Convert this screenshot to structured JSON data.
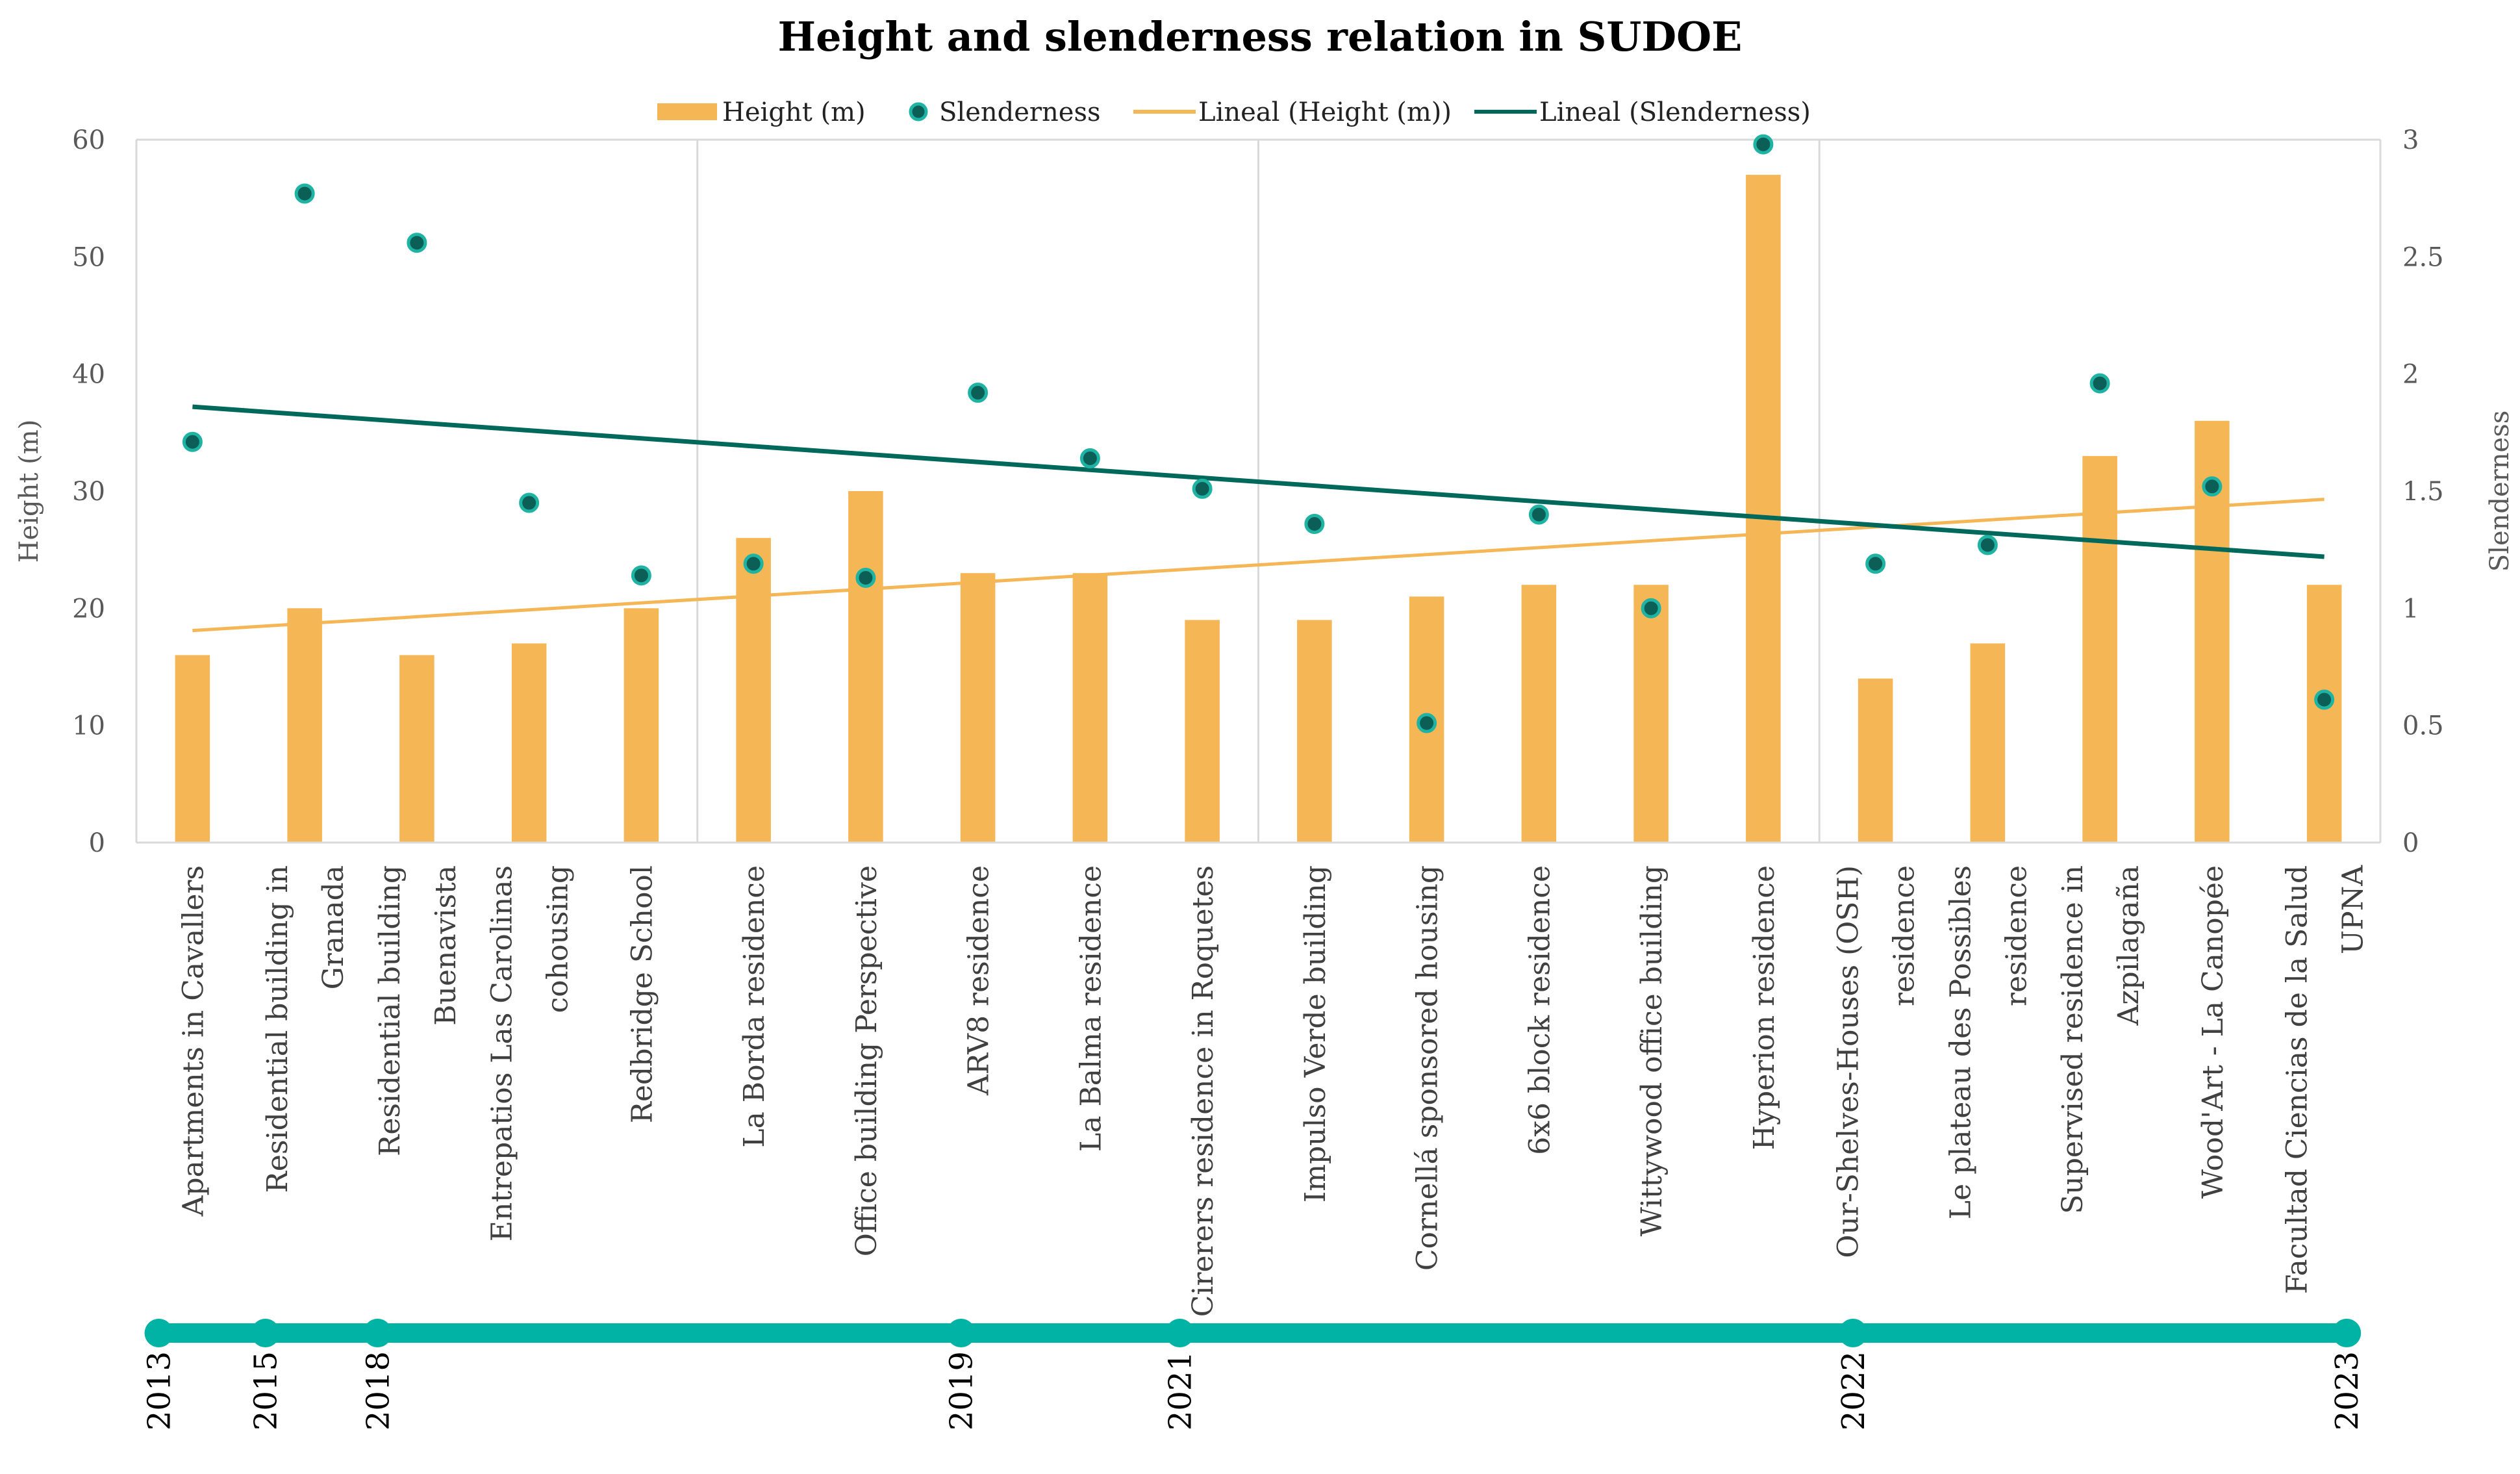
{
  "chart_data": {
    "type": "bar",
    "title": "Height and slenderness relation in SUDOE",
    "legend": [
      {
        "label": "Height (m)",
        "kind": "bar"
      },
      {
        "label": "Slenderness",
        "kind": "marker"
      },
      {
        "label": "Lineal (Height (m))",
        "kind": "line"
      },
      {
        "label": "Lineal (Slenderness)",
        "kind": "line"
      }
    ],
    "categories": [
      [
        "Apartments in Cavallers"
      ],
      [
        "Residential building in",
        "Granada"
      ],
      [
        "Residential building",
        "Buenavista"
      ],
      [
        "Entrepatios Las Carolinas",
        "cohousing"
      ],
      [
        "Redbridge School"
      ],
      [
        "La Borda residence"
      ],
      [
        "Office building Perspective"
      ],
      [
        "ARV8 residence"
      ],
      [
        "La Balma residence"
      ],
      [
        "Cirerers residence in Roquetes"
      ],
      [
        "Impulso Verde building"
      ],
      [
        "Cornellá sponsored housing"
      ],
      [
        "6x6 block residence"
      ],
      [
        "Wittywood office building"
      ],
      [
        "Hyperion residence"
      ],
      [
        "Our-Shelves-Houses (OSH)",
        "residence"
      ],
      [
        "Le plateau des Possibles",
        "residence"
      ],
      [
        "Supervised residence in",
        "Azpilagaña"
      ],
      [
        "Wood'Art - La Canopée"
      ],
      [
        "Facultad Ciencias de la Salud",
        "UPNA"
      ]
    ],
    "series": [
      {
        "name": "Height (m)",
        "type": "bar",
        "axis": "left",
        "color": "#F5B655",
        "values": [
          16,
          20,
          16,
          17,
          20,
          26,
          30,
          23,
          23,
          19,
          19,
          21,
          22,
          22,
          57,
          14,
          17,
          33,
          36,
          22
        ]
      },
      {
        "name": "Slenderness",
        "type": "scatter",
        "axis": "right",
        "color": "#0F7A6E",
        "values": [
          1.71,
          2.77,
          2.56,
          1.45,
          1.14,
          1.19,
          1.13,
          1.92,
          1.64,
          1.51,
          1.36,
          0.51,
          1.4,
          1.0,
          2.98,
          1.19,
          1.27,
          1.96,
          1.52,
          0.61
        ]
      },
      {
        "name": "Lineal (Height (m))",
        "type": "trendline",
        "axis": "left",
        "color": "#F5B655",
        "start": 18.1,
        "end": 29.3
      },
      {
        "name": "Lineal (Slenderness)",
        "type": "trendline",
        "axis": "right",
        "color": "#00695C",
        "start": 1.86,
        "end": 1.22
      }
    ],
    "y_left": {
      "label": "Height (m)",
      "min": 0,
      "max": 60,
      "ticks": [
        "0",
        "10",
        "20",
        "30",
        "40",
        "50",
        "60"
      ]
    },
    "y_right": {
      "label": "Slenderness",
      "min": 0,
      "max": 3,
      "ticks": [
        "0",
        "0.5",
        "1",
        "1.5",
        "2",
        "2.5",
        "3"
      ]
    },
    "group_separators_after": [
      4,
      9,
      14
    ],
    "timeline": {
      "color": "#00B3A4",
      "events": [
        {
          "year": "2013",
          "category_index": -0.3
        },
        {
          "year": "2015",
          "category_index": 0.65
        },
        {
          "year": "2018",
          "category_index": 1.65
        },
        {
          "year": "2019",
          "category_index": 6.85
        },
        {
          "year": "2021",
          "category_index": 8.8
        },
        {
          "year": "2022",
          "category_index": 14.8
        },
        {
          "year": "2023",
          "category_index": 19.2
        }
      ]
    }
  }
}
